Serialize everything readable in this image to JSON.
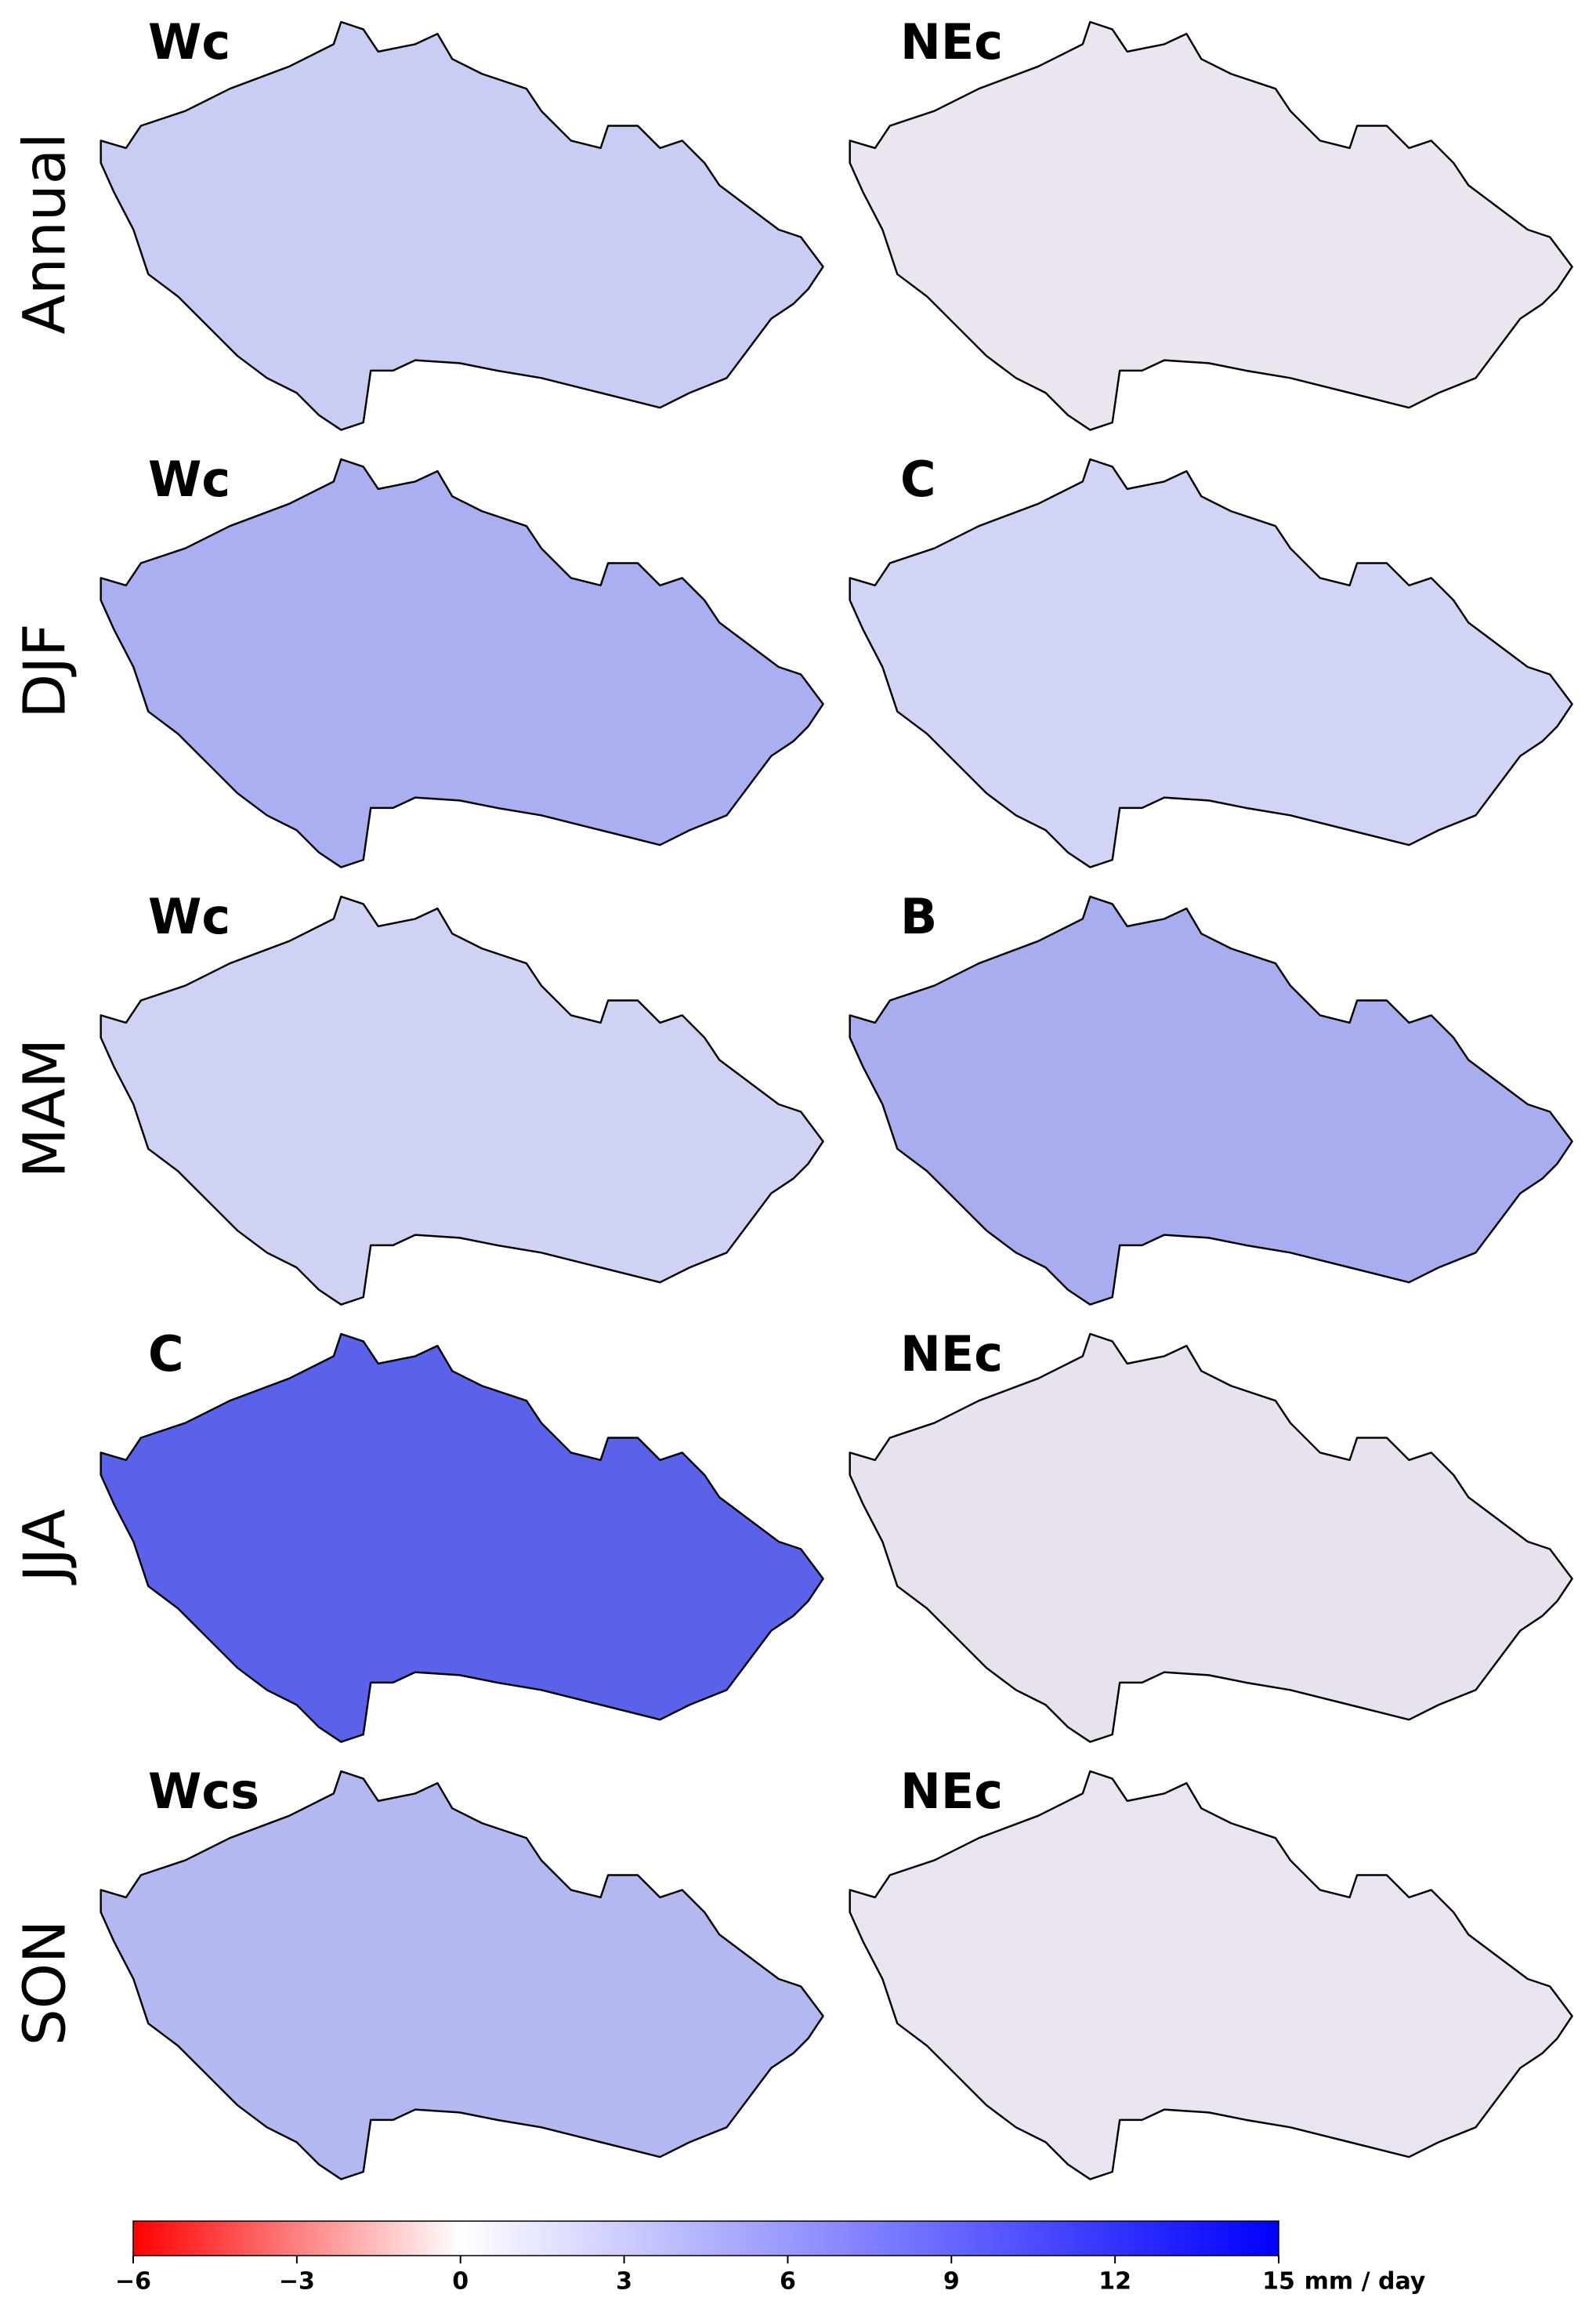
{
  "panels": [
    {
      "row_label": "Annual",
      "maps": [
        {
          "label": "Wc",
          "color": "#c9ccf3"
        },
        {
          "label": "NEc",
          "color": "#ebe5f0"
        }
      ]
    },
    {
      "row_label": "DJF",
      "maps": [
        {
          "label": "Wc",
          "color": "#a9aff0"
        },
        {
          "label": "C",
          "color": "#d2d4f5"
        }
      ]
    },
    {
      "row_label": "MAM",
      "maps": [
        {
          "label": "Wc",
          "color": "#d0d2f4"
        },
        {
          "label": "B",
          "color": "#a8adf0"
        }
      ]
    },
    {
      "row_label": "JJA",
      "maps": [
        {
          "label": "C",
          "color": "#5a62ea"
        },
        {
          "label": "NEc",
          "color": "#e8e2ef"
        }
      ]
    },
    {
      "row_label": "SON",
      "maps": [
        {
          "label": "Wcs",
          "color": "#b3b8f1"
        },
        {
          "label": "NEc",
          "color": "#eae4f0"
        }
      ]
    }
  ],
  "colorbar": {
    "xlim": [
      -6,
      15
    ],
    "xticks": [
      {
        "value": -6,
        "label": "−6"
      },
      {
        "value": -3,
        "label": "−3"
      },
      0,
      3,
      6,
      9,
      12,
      15
    ],
    "colors": [
      "#ff0000",
      "#ffffff",
      "#0000ff"
    ],
    "unit": "mm / day"
  }
}
